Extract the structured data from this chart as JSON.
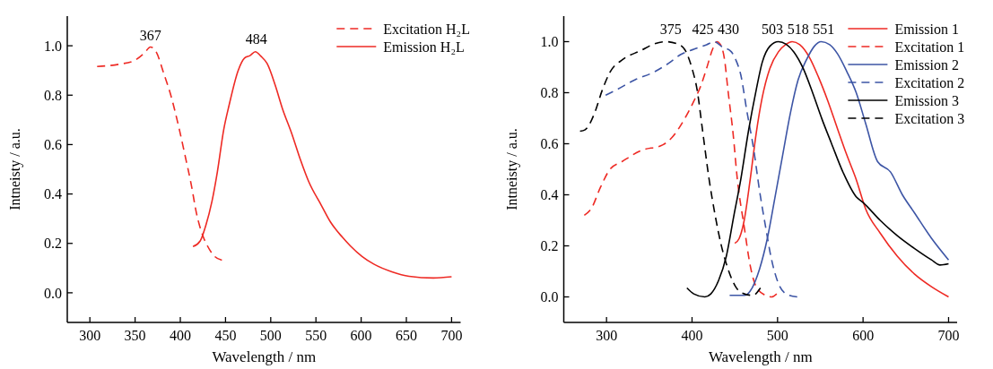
{
  "chart_data": [
    {
      "type": "line",
      "xlabel": "Wavelength / nm",
      "ylabel": "Intneisty / a.u.",
      "xlim": [
        275,
        710
      ],
      "ylim": [
        -0.12,
        1.12
      ],
      "xticks": [
        300,
        350,
        400,
        450,
        500,
        550,
        600,
        650,
        700
      ],
      "yticks": [
        {
          "value": 0,
          "label": "0.0"
        },
        {
          "value": 0.2,
          "label": "0.2"
        },
        {
          "value": 0.4,
          "label": "0.4"
        },
        {
          "value": 0.6,
          "label": "0.6"
        },
        {
          "value": 0.8,
          "label": "0.8"
        },
        {
          "value": 1,
          "label": "1.0"
        }
      ],
      "grid": false,
      "legend": "top right",
      "marker": "none",
      "annotations": [
        {
          "text": "367",
          "x": 367,
          "y": 0.99
        },
        {
          "text": "484",
          "x": 484,
          "y": 0.976
        }
      ],
      "series": [
        {
          "name": "Excitation H₂L",
          "color": "#ee2a24",
          "line_style": "dashed",
          "x": [
            308,
            332,
            349,
            360,
            367,
            373,
            382,
            389,
            399,
            405,
            412,
            418,
            425,
            430,
            438,
            446
          ],
          "values": [
            0.916,
            0.925,
            0.94,
            0.97,
            0.995,
            0.977,
            0.885,
            0.806,
            0.66,
            0.56,
            0.44,
            0.32,
            0.23,
            0.19,
            0.147,
            0.132
          ]
        },
        {
          "name": "Emission H₂L",
          "color": "#ee2a24",
          "line_style": "solid",
          "x": [
            414,
            422,
            428,
            435,
            441,
            448,
            454,
            464,
            471,
            477,
            483,
            489,
            496,
            505,
            513,
            523,
            533,
            542,
            556,
            566,
            579,
            588,
            601,
            614,
            634,
            653,
            680,
            700
          ],
          "values": [
            0.187,
            0.21,
            0.27,
            0.37,
            0.49,
            0.66,
            0.76,
            0.9,
            0.95,
            0.96,
            0.976,
            0.958,
            0.928,
            0.84,
            0.745,
            0.647,
            0.537,
            0.45,
            0.354,
            0.287,
            0.226,
            0.19,
            0.147,
            0.116,
            0.085,
            0.067,
            0.06,
            0.065
          ]
        }
      ]
    },
    {
      "type": "line",
      "xlabel": "Wavelength / nm",
      "ylabel": "Intneisty / a.u.",
      "xlim": [
        250,
        710
      ],
      "ylim": [
        -0.1,
        1.1
      ],
      "xticks": [
        300,
        400,
        500,
        600,
        700
      ],
      "yticks": [
        {
          "value": 0,
          "label": "0.0"
        },
        {
          "value": 0.2,
          "label": "0.2"
        },
        {
          "value": 0.4,
          "label": "0.4"
        },
        {
          "value": 0.6,
          "label": "0.6"
        },
        {
          "value": 0.8,
          "label": "0.8"
        },
        {
          "value": 1,
          "label": "1.0"
        }
      ],
      "grid": false,
      "legend": "top right",
      "marker": "none",
      "annotations": [
        {
          "text": "375",
          "x": 375,
          "y": 1
        },
        {
          "text": "425",
          "x": 425,
          "y": 1
        },
        {
          "text": "430",
          "x": 430,
          "y": 1
        },
        {
          "text": "503",
          "x": 503,
          "y": 1
        },
        {
          "text": "518",
          "x": 518,
          "y": 1
        },
        {
          "text": "551",
          "x": 551,
          "y": 1
        }
      ],
      "series": [
        {
          "name": "Emission 1",
          "color": "#ee2a24",
          "line_style": "solid",
          "x": [
            450,
            455,
            461,
            468,
            475,
            482,
            491,
            501,
            510,
            517,
            526,
            537,
            548,
            559,
            570,
            581,
            592,
            603,
            620,
            640,
            660,
            680,
            700
          ],
          "values": [
            0.21,
            0.228,
            0.3,
            0.46,
            0.64,
            0.78,
            0.895,
            0.96,
            0.99,
            1,
            0.988,
            0.94,
            0.86,
            0.766,
            0.66,
            0.556,
            0.46,
            0.345,
            0.25,
            0.16,
            0.09,
            0.04,
            0
          ]
        },
        {
          "name": "Excitation 1",
          "color": "#ee2a24",
          "line_style": "dashed",
          "x": [
            274,
            282,
            293,
            304,
            318,
            340,
            366,
            377,
            391,
            402,
            410,
            417,
            424,
            429,
            433,
            438,
            442,
            448,
            453,
            461,
            468,
            475,
            486,
            493,
            499
          ],
          "values": [
            0.32,
            0.345,
            0.43,
            0.5,
            0.53,
            0.573,
            0.596,
            0.626,
            0.696,
            0.766,
            0.825,
            0.895,
            0.97,
            1,
            0.99,
            0.93,
            0.81,
            0.64,
            0.46,
            0.275,
            0.123,
            0.04,
            0.006,
            0,
            0.012
          ]
        },
        {
          "name": "Emission 2",
          "color": "#3d55a5",
          "line_style": "solid",
          "x": [
            444,
            461,
            468,
            479,
            488,
            497,
            506,
            515,
            524,
            534,
            543,
            551,
            561,
            570,
            581,
            592,
            603,
            617,
            632,
            646,
            660,
            680,
            700
          ],
          "values": [
            0.006,
            0.006,
            0.023,
            0.11,
            0.228,
            0.39,
            0.556,
            0.72,
            0.85,
            0.93,
            0.982,
            1,
            0.988,
            0.953,
            0.883,
            0.8,
            0.68,
            0.53,
            0.49,
            0.4,
            0.33,
            0.23,
            0.145
          ]
        },
        {
          "name": "Excitation 2",
          "color": "#3d55a5",
          "line_style": "dashed",
          "x": [
            299,
            311,
            333,
            355,
            373,
            387,
            402,
            417,
            426,
            435,
            446,
            451,
            457,
            464,
            472,
            479,
            486,
            493,
            501,
            510,
            523
          ],
          "values": [
            0.79,
            0.81,
            0.85,
            0.88,
            0.916,
            0.95,
            0.97,
            0.988,
            1,
            0.98,
            0.96,
            0.93,
            0.87,
            0.73,
            0.58,
            0.415,
            0.275,
            0.146,
            0.053,
            0.012,
            0
          ]
        },
        {
          "name": "Emission 3",
          "color": "#000000",
          "line_style": "solid",
          "x": [
            394,
            402,
            415,
            422,
            431,
            440,
            449,
            457,
            466,
            475,
            482,
            491,
            501,
            510,
            519,
            530,
            541,
            552,
            563,
            577,
            592,
            600,
            620,
            640,
            660,
            680,
            690,
            700
          ],
          "values": [
            0.035,
            0.012,
            0,
            0.012,
            0.064,
            0.158,
            0.32,
            0.46,
            0.65,
            0.81,
            0.918,
            0.982,
            1,
            0.99,
            0.96,
            0.895,
            0.8,
            0.696,
            0.602,
            0.485,
            0.392,
            0.37,
            0.3,
            0.24,
            0.19,
            0.145,
            0.125,
            0.13
          ]
        },
        {
          "name": "Excitation 3",
          "color": "#000000",
          "line_style": "dashed",
          "x": [
            269,
            275,
            286,
            295,
            304,
            319,
            340,
            355,
            369,
            384,
            393,
            400,
            406,
            412,
            420,
            427,
            434,
            442,
            451,
            457,
            471,
            480
          ],
          "values": [
            0.649,
            0.655,
            0.72,
            0.81,
            0.88,
            0.93,
            0.965,
            0.99,
            1,
            0.99,
            0.96,
            0.895,
            0.81,
            0.66,
            0.46,
            0.32,
            0.205,
            0.11,
            0.04,
            0.018,
            0.006,
            0.035
          ]
        }
      ]
    }
  ]
}
